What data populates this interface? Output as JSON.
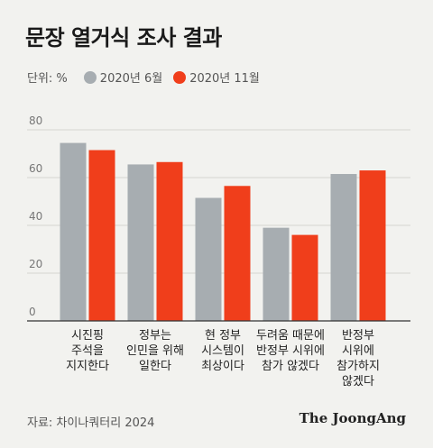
{
  "title": "문장 열거식 조사 결과",
  "unit_label": "단위: %",
  "source": "자료: 차이나쿼터리 2024",
  "brand": "The JoongAng",
  "colors": {
    "series1": "#a7adb1",
    "series2": "#f03e1b",
    "grid": "#d6d6d2",
    "axis": "#333333",
    "tick": "#777777"
  },
  "chart_data": {
    "type": "bar",
    "title": "문장 열거식 조사 결과",
    "ylabel": "",
    "xlabel": "",
    "ylim": [
      0,
      80
    ],
    "yticks": [
      0,
      20,
      40,
      60,
      80
    ],
    "grid": true,
    "legend_position": "top-left",
    "categories": [
      [
        "시진핑",
        "주석을",
        "지지한다"
      ],
      [
        "정부는",
        "인민을 위해",
        "일한다"
      ],
      [
        "현 정부",
        "시스템이",
        "최상이다"
      ],
      [
        "두려움 때문에",
        "반정부 시위에",
        "참가 않겠다"
      ],
      [
        "반정부",
        "시위에",
        "참가하지",
        "않겠다"
      ]
    ],
    "series": [
      {
        "name": "2020년 6월",
        "values": [
          74.5,
          65.5,
          51.5,
          39,
          61.5
        ]
      },
      {
        "name": "2020년 11월",
        "values": [
          71.5,
          66.5,
          56.5,
          36,
          63
        ]
      }
    ]
  }
}
